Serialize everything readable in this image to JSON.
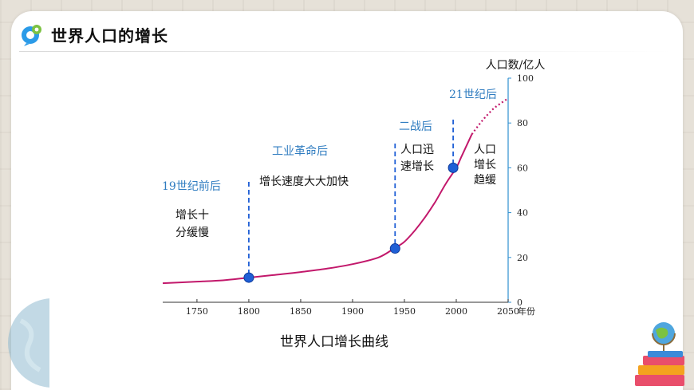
{
  "header": {
    "title": "世界人口的增长",
    "logo_icon": "logo-icon"
  },
  "colors": {
    "curve": "#c2186b",
    "axis": "#2f8fd0",
    "marker": "#1f5fd6",
    "annotation_blue": "#2f7cc0"
  },
  "chart_data": {
    "type": "line",
    "title": "世界人口增长曲线",
    "xlabel": "年份",
    "ylabel": "人口数/亿人",
    "x_ticks": [
      "1750",
      "1800",
      "1850",
      "1900",
      "1950",
      "2000",
      "2050"
    ],
    "y_ticks": [
      "0",
      "20",
      "40",
      "60",
      "80",
      "100"
    ],
    "xlim": [
      1717,
      2050
    ],
    "ylim": [
      0,
      100
    ],
    "grid": false,
    "series": [
      {
        "style": "solid",
        "points": [
          [
            1717,
            8.5
          ],
          [
            1750,
            9.2
          ],
          [
            1775,
            9.8
          ],
          [
            1800,
            11
          ],
          [
            1825,
            12.2
          ],
          [
            1850,
            13.5
          ],
          [
            1875,
            15
          ],
          [
            1900,
            17
          ],
          [
            1925,
            20
          ],
          [
            1940,
            24
          ],
          [
            1950,
            27
          ],
          [
            1960,
            32
          ],
          [
            1970,
            38
          ],
          [
            1980,
            45
          ],
          [
            1990,
            53
          ],
          [
            2000,
            60
          ],
          [
            2005,
            65
          ],
          [
            2010,
            70
          ],
          [
            2015,
            75
          ]
        ]
      },
      {
        "style": "dotted",
        "points": [
          [
            2015,
            75
          ],
          [
            2025,
            81
          ],
          [
            2035,
            86
          ],
          [
            2042,
            88.5
          ],
          [
            2050,
            91
          ]
        ]
      }
    ],
    "markers": [
      {
        "x": 1800,
        "y": 11
      },
      {
        "x": 1941,
        "y": 24
      },
      {
        "x": 1997,
        "y": 60
      }
    ],
    "annotations": {
      "period1": "19世纪前后",
      "period1_desc_line1": "增长十",
      "period1_desc_line2": "分缓慢",
      "period2": "工业革命后",
      "period2_desc": "增长速度大大加快",
      "period3": "二战后",
      "period3_desc_line1": "人口迅",
      "period3_desc_line2": "速增长",
      "period4": "21世纪后",
      "period4_desc_line1": "人口",
      "period4_desc_line2": "增长",
      "period4_desc_line3": "趋缓"
    }
  }
}
